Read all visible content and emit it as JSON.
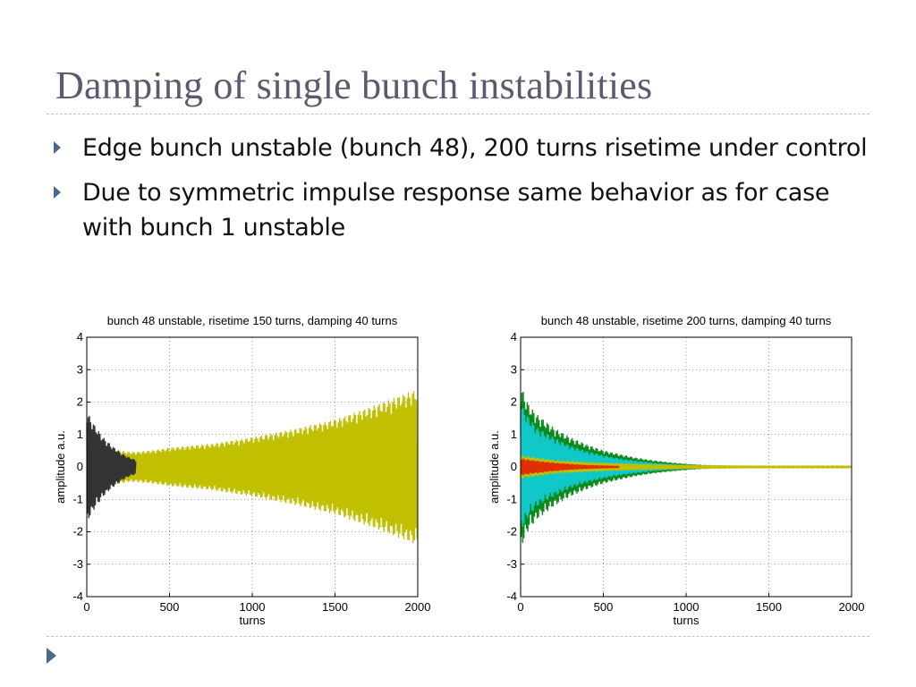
{
  "slide": {
    "title": "Damping of single bunch instabilities",
    "bullets": [
      "Edge bunch unstable (bunch 48), 200 turns risetime under control",
      "Due to symmetric impulse response same behavior as for case with bunch 1 unstable"
    ]
  },
  "chart_data": [
    {
      "type": "line",
      "title": "bunch 48 unstable, risetime 150 turns, damping 40 turns",
      "xlabel": "turns",
      "ylabel": "amplitude a.u.",
      "xlim": [
        0,
        2000
      ],
      "ylim": [
        -4,
        4
      ],
      "xticks": [
        0,
        500,
        1000,
        1500,
        2000
      ],
      "yticks": [
        -4,
        -3,
        -2,
        -1,
        0,
        1,
        2,
        3,
        4
      ],
      "grid": true,
      "series": [
        {
          "color": "#c0c000",
          "x": [
            0,
            50,
            100,
            150,
            200,
            250,
            300,
            400,
            500,
            750,
            1000,
            1250,
            1500,
            1750,
            2000
          ],
          "envelope": [
            1.5,
            1.1,
            0.8,
            0.6,
            0.5,
            0.45,
            0.45,
            0.5,
            0.58,
            0.7,
            0.9,
            1.15,
            1.45,
            1.9,
            2.4
          ]
        },
        {
          "color": "#e03000",
          "x": [
            0,
            50,
            100,
            150,
            200,
            250,
            300
          ],
          "envelope": [
            1.1,
            0.7,
            0.45,
            0.28,
            0.15,
            0.08,
            0.03
          ]
        },
        {
          "color": "#333333",
          "x": [
            0,
            50,
            100,
            150,
            200,
            250,
            300
          ],
          "envelope": [
            1.7,
            1.25,
            0.9,
            0.65,
            0.45,
            0.3,
            0.2
          ]
        }
      ]
    },
    {
      "type": "line",
      "title": "bunch 48 unstable, risetime 200 turns, damping 40 turns",
      "xlabel": "turns",
      "ylabel": "amplitude a.u.",
      "xlim": [
        0,
        2000
      ],
      "ylim": [
        -4,
        4
      ],
      "xticks": [
        0,
        500,
        1000,
        1500,
        2000
      ],
      "yticks": [
        -4,
        -3,
        -2,
        -1,
        0,
        1,
        2,
        3,
        4
      ],
      "grid": true,
      "series": [
        {
          "color": "#0a8a1a",
          "x": [
            0,
            50,
            100,
            200,
            300,
            400,
            500,
            600,
            700,
            800,
            900,
            1000,
            1100,
            1150
          ],
          "envelope": [
            2.5,
            1.9,
            1.6,
            1.2,
            0.9,
            0.68,
            0.5,
            0.38,
            0.27,
            0.19,
            0.13,
            0.08,
            0.05,
            0.04
          ]
        },
        {
          "color": "#10c8c8",
          "x": [
            0,
            50,
            100,
            200,
            300,
            400,
            500,
            600,
            700,
            800,
            900,
            1000,
            1100
          ],
          "envelope": [
            1.95,
            1.5,
            1.2,
            0.9,
            0.65,
            0.48,
            0.35,
            0.25,
            0.18,
            0.12,
            0.08,
            0.05,
            0.03
          ]
        },
        {
          "color": "#c0c000",
          "x": [
            0,
            100,
            200,
            400,
            600,
            800,
            1000,
            1200,
            1400,
            1600,
            1800,
            2000
          ],
          "envelope": [
            0.35,
            0.28,
            0.2,
            0.14,
            0.1,
            0.07,
            0.05,
            0.04,
            0.03,
            0.03,
            0.03,
            0.03
          ]
        },
        {
          "color": "#e03000",
          "x": [
            0,
            100,
            200,
            300,
            400,
            500,
            600
          ],
          "envelope": [
            0.25,
            0.18,
            0.12,
            0.08,
            0.05,
            0.03,
            0.02
          ]
        }
      ]
    }
  ]
}
